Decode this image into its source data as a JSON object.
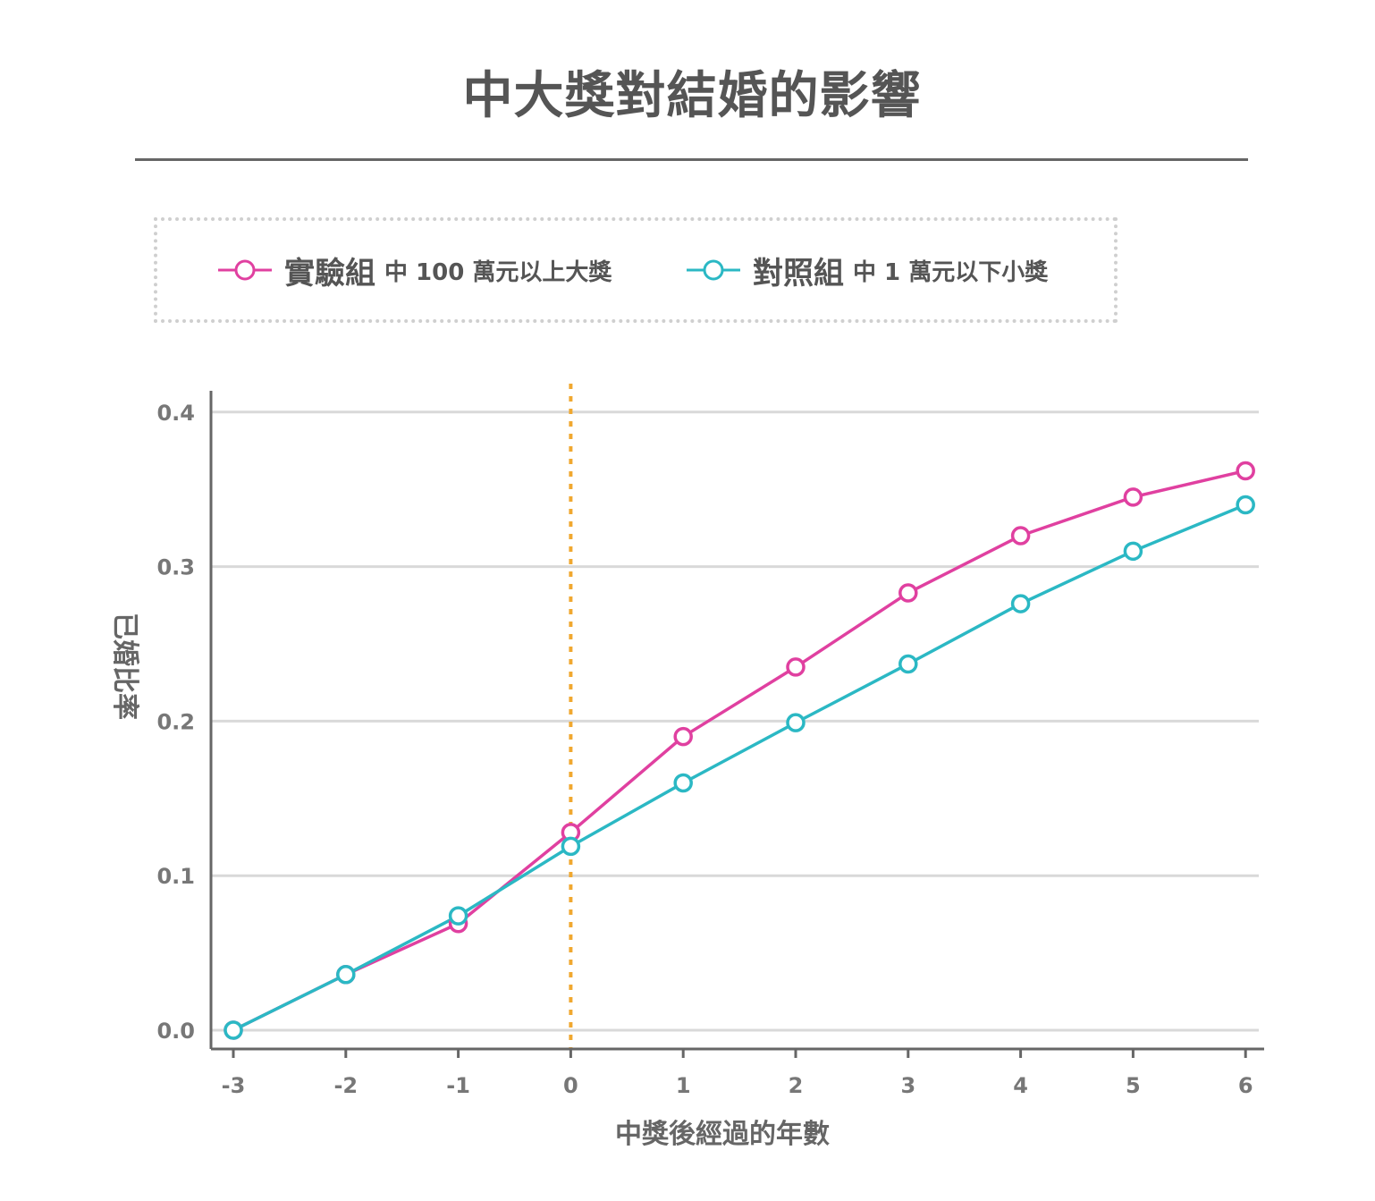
{
  "title": "中大獎對結婚的影響",
  "legend": [
    {
      "label": "實驗組",
      "desc": "中 100 萬元以上大獎",
      "color": "#e040a0"
    },
    {
      "label": "對照組",
      "desc": "中 1 萬元以下小獎",
      "color": "#2bb8c4"
    }
  ],
  "colors": {
    "experimental": "#e040a0",
    "control": "#2bb8c4",
    "event_line": "#f0a830",
    "grid": "#d9d9d9",
    "axis": "#666666"
  },
  "chart_data": {
    "type": "line",
    "title": "中大獎對結婚的影響",
    "xlabel": "中獎後經過的年數",
    "ylabel": "已婚比率",
    "x": [
      -3,
      -2,
      -1,
      0,
      1,
      2,
      3,
      4,
      5,
      6
    ],
    "x_tick_labels": [
      "-3",
      "-2",
      "-1",
      "0",
      "1",
      "2",
      "3",
      "4",
      "5",
      "6"
    ],
    "y_tick_values": [
      0.0,
      0.1,
      0.2,
      0.3,
      0.4
    ],
    "y_tick_labels": [
      "0.0",
      "0.1",
      "0.2",
      "0.3",
      "0.4"
    ],
    "xlim": [
      -3.2,
      6.2
    ],
    "ylim": [
      -0.013,
      0.415
    ],
    "grid": "horizontal",
    "vertical_marker_x": 0,
    "legend_position": "top",
    "series": [
      {
        "name": "實驗組",
        "color": "#e040a0",
        "values": [
          0.0,
          0.036,
          0.069,
          0.128,
          0.19,
          0.235,
          0.283,
          0.32,
          0.345,
          0.362
        ]
      },
      {
        "name": "對照組",
        "color": "#2bb8c4",
        "values": [
          0.0,
          0.036,
          0.074,
          0.119,
          0.16,
          0.199,
          0.237,
          0.276,
          0.31,
          0.34
        ]
      }
    ]
  }
}
